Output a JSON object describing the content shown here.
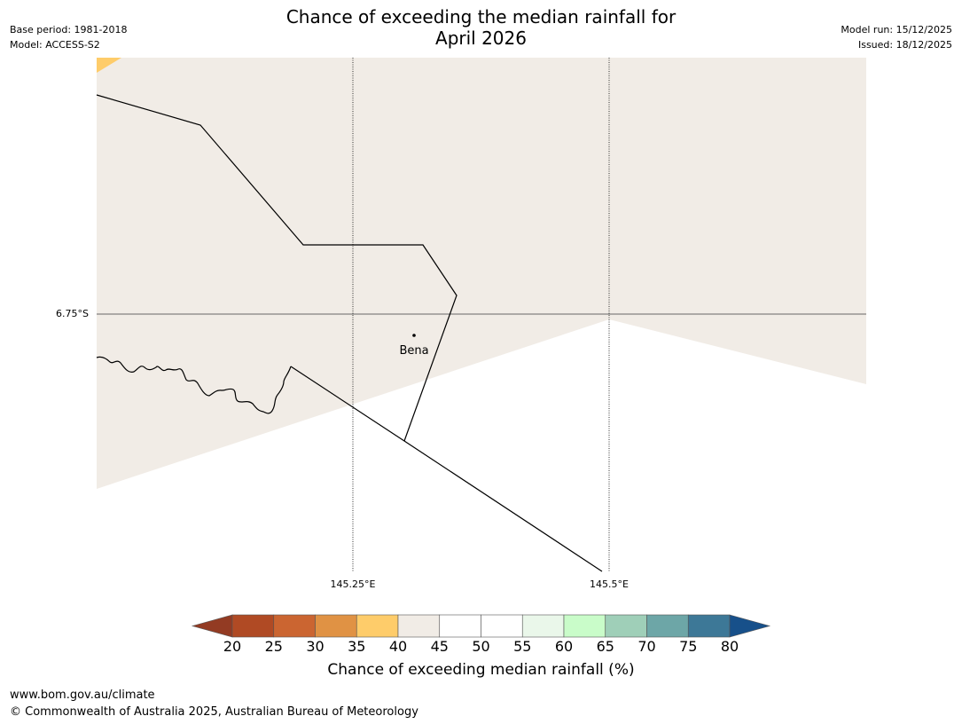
{
  "title": {
    "line1": "Chance of exceeding the median rainfall for",
    "line2": "April 2026"
  },
  "meta_left": {
    "base_period": "Base period: 1981-2018",
    "model": "Model: ACCESS-S2"
  },
  "meta_right": {
    "model_run": "Model run: 15/12/2025",
    "issued": "Issued: 18/12/2025"
  },
  "map": {
    "lat_label": "6.75°S",
    "lon_labels": [
      "145.25°E",
      "145.5°E"
    ],
    "place": "Bena",
    "colors": {
      "cat_35_40": "#fecc6a",
      "cat_40_45": "#f1ece6",
      "cat_45_55": "#ffffff",
      "boundary": "#000000",
      "gridline": "#555555"
    }
  },
  "colorbar": {
    "ticks": [
      "20",
      "25",
      "30",
      "35",
      "40",
      "45",
      "50",
      "55",
      "60",
      "65",
      "70",
      "75",
      "80"
    ],
    "colors": [
      "#b04a24",
      "#cb6531",
      "#e09244",
      "#fecc6a",
      "#f1ece6",
      "#ffffff",
      "#ffffff",
      "#eaf7ea",
      "#c9fcc9",
      "#9fcfb8",
      "#6da6a7",
      "#3d7897"
    ],
    "under_color": "#933b23",
    "over_color": "#17508a",
    "title": "Chance of exceeding median rainfall (%)"
  },
  "footer": {
    "url": "www.bom.gov.au/climate",
    "copyright": "© Commonwealth of Australia 2025, Australian Bureau of Meteorology"
  }
}
